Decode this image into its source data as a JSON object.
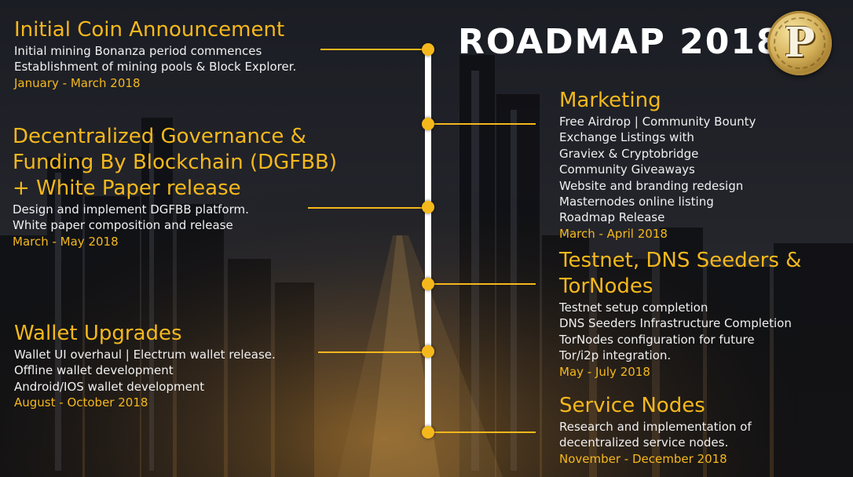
{
  "title": "ROADMAP 2018",
  "logo": {
    "letter": "P",
    "icon": "coin-logo-icon",
    "color": "#d6b25c"
  },
  "colors": {
    "accent": "#f5b81c",
    "text": "#f0f0f0",
    "timeline": "#ffffff"
  },
  "milestones": [
    {
      "heading": [
        "Initial Coin Announcement"
      ],
      "items": [
        "Initial mining Bonanza period commences",
        "Establishment of mining pools & Block Explorer."
      ],
      "date": "January - March 2018"
    },
    {
      "heading": [
        "Decentralized Governance &",
        "Funding By Blockchain (DGFBB)",
        "+ White Paper release"
      ],
      "items": [
        "Design and implement DGFBB platform.",
        "White paper composition and release"
      ],
      "date": "March - May 2018"
    },
    {
      "heading": [
        "Wallet Upgrades"
      ],
      "items": [
        "Wallet UI overhaul | Electrum wallet release.",
        "Offline wallet development",
        "Android/IOS wallet development"
      ],
      "date": "August - October 2018"
    },
    {
      "heading": [
        "Marketing"
      ],
      "items": [
        "Free Airdrop | Community Bounty",
        "Exchange Listings with",
        "Graviex  & Cryptobridge",
        "Community Giveaways",
        "Website and branding redesign",
        "Masternodes online listing",
        "Roadmap Release"
      ],
      "date": "March - April 2018"
    },
    {
      "heading": [
        "Testnet, DNS Seeders &",
        "TorNodes"
      ],
      "items": [
        "Testnet setup completion",
        "DNS Seeders Infrastructure Completion",
        "TorNodes configuration for future",
        "Tor/i2p integration."
      ],
      "date": "May - July 2018"
    },
    {
      "heading": [
        "Service Nodes"
      ],
      "items": [
        "Research and implementation of",
        "decentralized service nodes."
      ],
      "date": "November - December  2018"
    }
  ]
}
